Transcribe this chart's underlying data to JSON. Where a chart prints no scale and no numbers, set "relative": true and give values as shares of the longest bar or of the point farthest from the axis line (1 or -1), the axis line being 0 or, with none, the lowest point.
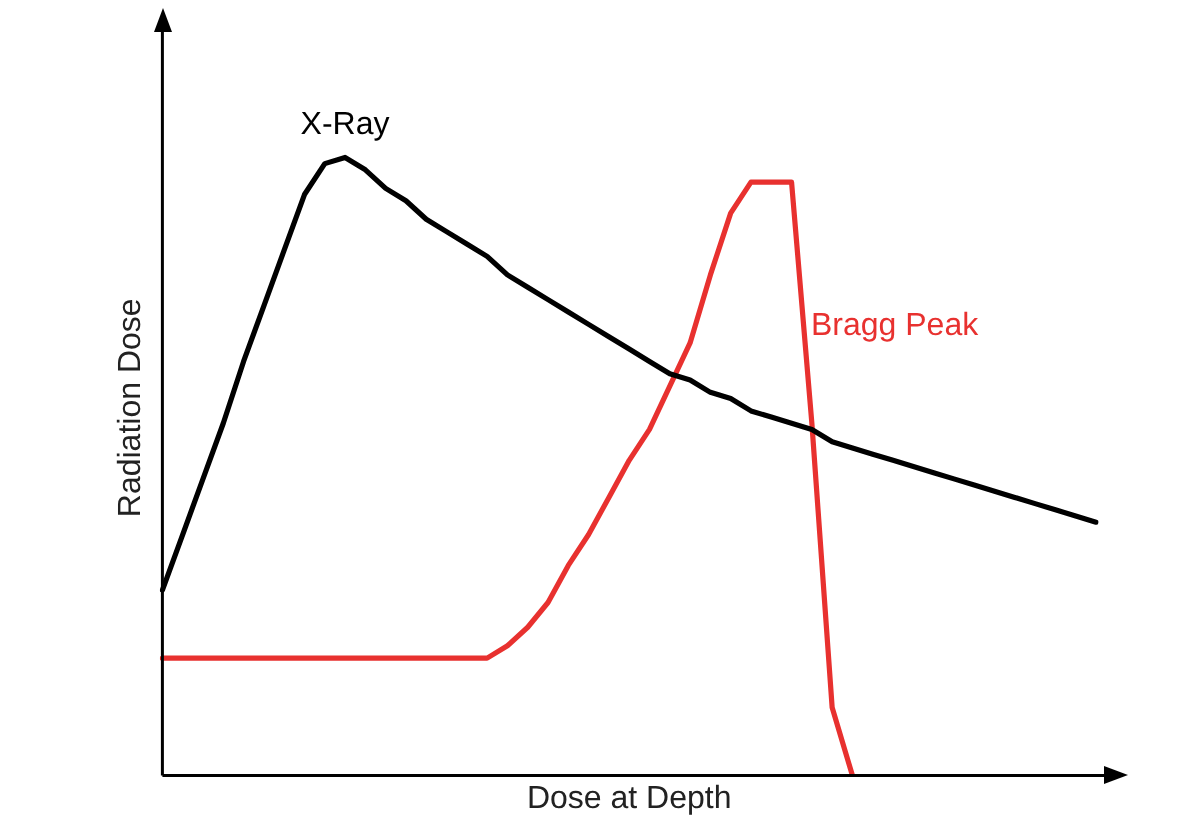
{
  "chart_data": {
    "type": "line",
    "xlabel": "Dose at Depth",
    "ylabel": "Radiation Dose",
    "relative": true,
    "marker": "none",
    "line_style": "solid",
    "categories": [
      null,
      null,
      null,
      null,
      null,
      null,
      null,
      null,
      null,
      null,
      null,
      null,
      null,
      null,
      null,
      null,
      null,
      null,
      null,
      null,
      null,
      null,
      null,
      null,
      null,
      null,
      null,
      null,
      null,
      null,
      null,
      null,
      null,
      null,
      null,
      null,
      null,
      null,
      null,
      null,
      null,
      null,
      null,
      null,
      null,
      null,
      null
    ],
    "series": [
      {
        "name": "X-Ray",
        "color": "#000000",
        "values": [
          0.3,
          0.39,
          0.48,
          0.57,
          0.67,
          0.76,
          0.85,
          0.94,
          0.99,
          1.0,
          0.98,
          0.95,
          0.93,
          0.9,
          0.88,
          0.86,
          0.84,
          0.81,
          0.79,
          0.77,
          0.75,
          0.73,
          0.71,
          0.69,
          0.67,
          0.65,
          0.64,
          0.62,
          0.61,
          0.59,
          0.58,
          0.57,
          0.56,
          0.54,
          0.53,
          0.52,
          0.51,
          0.5,
          0.49,
          0.48,
          0.47,
          0.46,
          0.45,
          0.44,
          0.43,
          0.42,
          0.41
        ]
      },
      {
        "name": "Bragg Peak",
        "color": "#e8312f",
        "values": [
          0.19,
          0.19,
          0.19,
          0.19,
          0.19,
          0.19,
          0.19,
          0.19,
          0.19,
          0.19,
          0.19,
          0.19,
          0.19,
          0.19,
          0.19,
          0.19,
          0.19,
          0.21,
          0.24,
          0.28,
          0.34,
          0.39,
          0.45,
          0.51,
          0.56,
          0.63,
          0.7,
          0.81,
          0.91,
          0.96,
          0.96,
          0.96,
          0.57,
          0.11,
          0,
          null,
          null,
          null,
          null,
          null,
          null,
          null,
          null,
          null,
          null,
          null,
          null
        ]
      }
    ]
  }
}
